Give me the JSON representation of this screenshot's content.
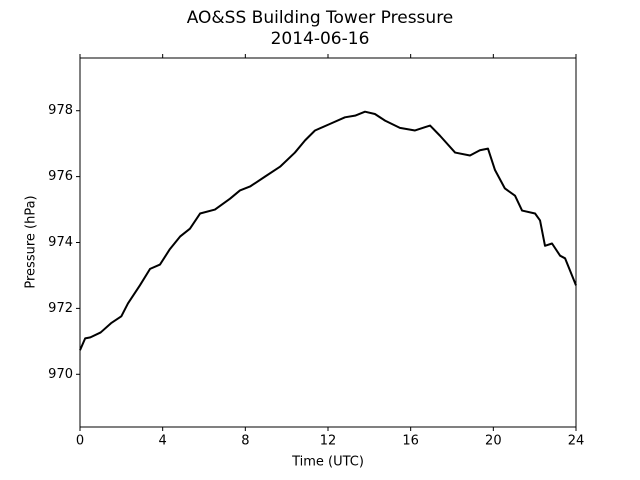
{
  "chart_data": {
    "type": "line",
    "title": "AO&SS Building Tower Pressure",
    "subtitle": "2014-06-16",
    "x_label": "Time (UTC)",
    "y_label": "Pressure (hPa)",
    "xlim": [
      0,
      24
    ],
    "xticks": [
      0,
      4,
      8,
      12,
      16,
      20,
      24
    ],
    "ylim": [
      968.4,
      979.6
    ],
    "yticks": [
      970,
      972,
      974,
      976,
      978
    ],
    "grid": false,
    "series": [
      {
        "name": "Pressure",
        "color": "#000000",
        "x": [
          0,
          0.25,
          0.5,
          1.0,
          1.5,
          2.0,
          2.32,
          2.9,
          3.39,
          3.87,
          4.35,
          4.84,
          5.32,
          5.81,
          6.53,
          7.26,
          7.74,
          8.23,
          8.95,
          9.68,
          10.4,
          10.89,
          11.37,
          12.1,
          12.82,
          13.31,
          13.79,
          14.27,
          14.76,
          15.48,
          16.21,
          16.69,
          16.94,
          17.42,
          18.15,
          18.87,
          19.35,
          19.74,
          20.08,
          20.56,
          21.05,
          21.39,
          22.02,
          22.26,
          22.5,
          22.84,
          23.23,
          23.47,
          23.71,
          24
        ],
        "values": [
          970.73,
          971.09,
          971.12,
          971.27,
          971.55,
          971.76,
          972.15,
          972.7,
          973.2,
          973.33,
          973.8,
          974.18,
          974.42,
          974.88,
          975.0,
          975.33,
          975.58,
          975.7,
          976.0,
          976.3,
          976.73,
          977.1,
          977.4,
          977.6,
          977.8,
          977.85,
          977.97,
          977.9,
          977.7,
          977.48,
          977.4,
          977.5,
          977.55,
          977.24,
          976.73,
          976.64,
          976.8,
          976.85,
          976.2,
          975.64,
          975.42,
          974.97,
          974.88,
          974.67,
          973.9,
          973.97,
          973.6,
          973.52,
          973.15,
          972.7
        ]
      }
    ]
  }
}
